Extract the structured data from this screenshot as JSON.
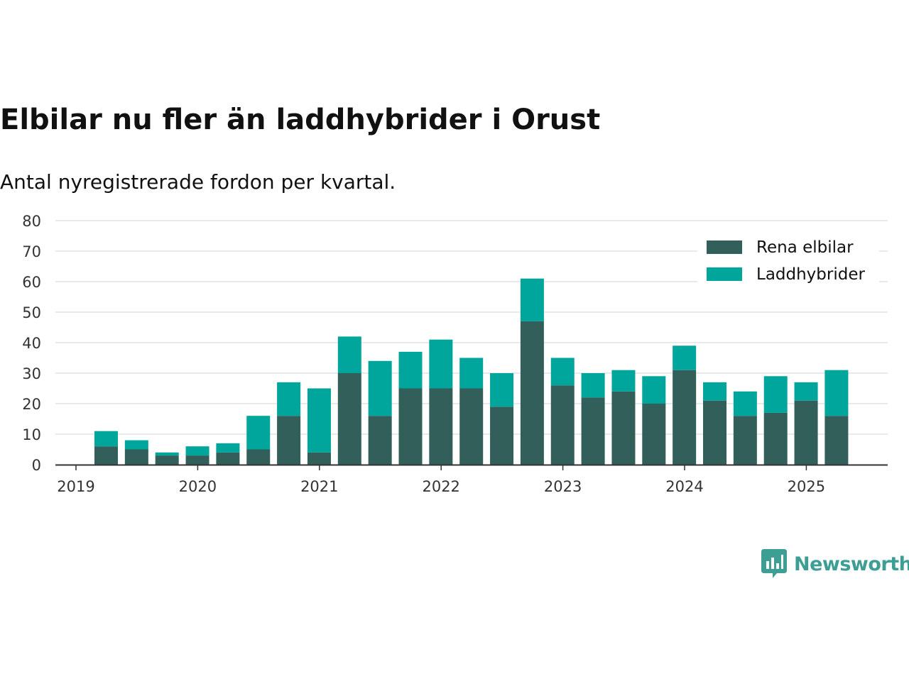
{
  "header": {
    "title": "Elbilar nu fler än laddhybrider i Orust",
    "subtitle": "Antal nyregistrerade fordon per kvartal."
  },
  "brand": {
    "name": "Newsworthy",
    "color": "#3d9e94"
  },
  "chart_data": {
    "type": "bar",
    "stacked": true,
    "categories": [
      "2019 Q2",
      "2019 Q3",
      "2019 Q4",
      "2020 Q1",
      "2020 Q2",
      "2020 Q3",
      "2020 Q4",
      "2021 Q1",
      "2021 Q2",
      "2021 Q3",
      "2021 Q4",
      "2022 Q1",
      "2022 Q2",
      "2022 Q3",
      "2022 Q4",
      "2023 Q1",
      "2023 Q2",
      "2023 Q3",
      "2023 Q4",
      "2024 Q1",
      "2024 Q2",
      "2024 Q3",
      "2024 Q4",
      "2025 Q1",
      "2025 Q2"
    ],
    "series": [
      {
        "name": "Rena elbilar",
        "color": "#335f5a",
        "values": [
          6,
          5,
          3,
          3,
          4,
          5,
          16,
          4,
          30,
          16,
          25,
          25,
          25,
          19,
          47,
          26,
          22,
          24,
          20,
          31,
          21,
          16,
          17,
          21,
          16
        ]
      },
      {
        "name": "Laddhybrider",
        "color": "#00a59c",
        "values": [
          5,
          3,
          1,
          3,
          3,
          11,
          11,
          21,
          12,
          18,
          12,
          16,
          10,
          11,
          14,
          9,
          8,
          7,
          9,
          8,
          6,
          8,
          12,
          6,
          15
        ]
      }
    ],
    "xticks": [
      "2019",
      "2020",
      "2021",
      "2022",
      "2023",
      "2024",
      "2025"
    ],
    "yticks": [
      0,
      10,
      20,
      30,
      40,
      50,
      60,
      70,
      80
    ],
    "ylim": [
      0,
      80
    ],
    "grid": true,
    "legend_position": "top-right"
  }
}
